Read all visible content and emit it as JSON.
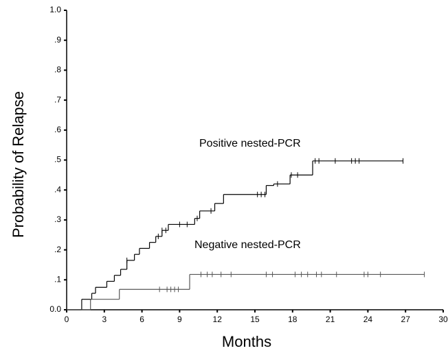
{
  "chart_data": {
    "type": "step",
    "xlabel": "Months",
    "ylabel": "Probability of Relapse",
    "xlim": [
      0,
      30
    ],
    "ylim": [
      0,
      1
    ],
    "xticks": [
      0,
      3,
      6,
      9,
      12,
      15,
      18,
      21,
      24,
      27,
      30
    ],
    "yticks": [
      {
        "value": 0,
        "label": "0.0"
      },
      {
        "value": 0.1,
        "label": ".1"
      },
      {
        "value": 0.2,
        "label": ".2"
      },
      {
        "value": 0.3,
        "label": ".3"
      },
      {
        "value": 0.4,
        "label": ".4"
      },
      {
        "value": 0.5,
        "label": ".5"
      },
      {
        "value": 0.6,
        "label": ".6"
      },
      {
        "value": 0.7,
        "label": ".7"
      },
      {
        "value": 0.8,
        "label": ".8"
      },
      {
        "value": 0.9,
        "label": ".9"
      },
      {
        "value": 1,
        "label": "1.0"
      }
    ],
    "series": [
      {
        "name": "Positive nested-PCR",
        "color": "#000000",
        "x": [
          0,
          1.2,
          2.0,
          2.3,
          3.2,
          3.8,
          4.3,
          4.8,
          5.4,
          5.8,
          6.6,
          7.1,
          7.6,
          8.1,
          10.2,
          10.6,
          11.8,
          12.5,
          15.9,
          16.5,
          17.8,
          19.6,
          26.8
        ],
        "values": [
          0,
          0.035,
          0.055,
          0.075,
          0.095,
          0.115,
          0.135,
          0.165,
          0.185,
          0.205,
          0.225,
          0.245,
          0.265,
          0.285,
          0.305,
          0.33,
          0.355,
          0.385,
          0.415,
          0.42,
          0.45,
          0.497,
          0.497
        ],
        "censored": [
          4.8,
          7.3,
          7.6,
          7.9,
          9.0,
          9.6,
          10.4,
          11.5,
          15.2,
          15.5,
          15.8,
          16.8,
          17.9,
          18.4,
          19.8,
          20.1,
          21.4,
          22.7,
          23.0,
          23.3,
          26.8
        ]
      },
      {
        "name": "Negative nested-PCR",
        "color": "#555555",
        "x": [
          0,
          1.9,
          4.2,
          9.8,
          28.5
        ],
        "values": [
          0,
          0.035,
          0.068,
          0.118,
          0.118
        ],
        "censored": [
          7.4,
          8.0,
          8.3,
          8.6,
          8.9,
          10.7,
          11.2,
          11.6,
          12.3,
          13.1,
          15.9,
          16.4,
          18.2,
          18.7,
          19.2,
          19.9,
          20.3,
          21.5,
          23.7,
          24.0,
          25.0,
          28.5
        ]
      }
    ]
  }
}
